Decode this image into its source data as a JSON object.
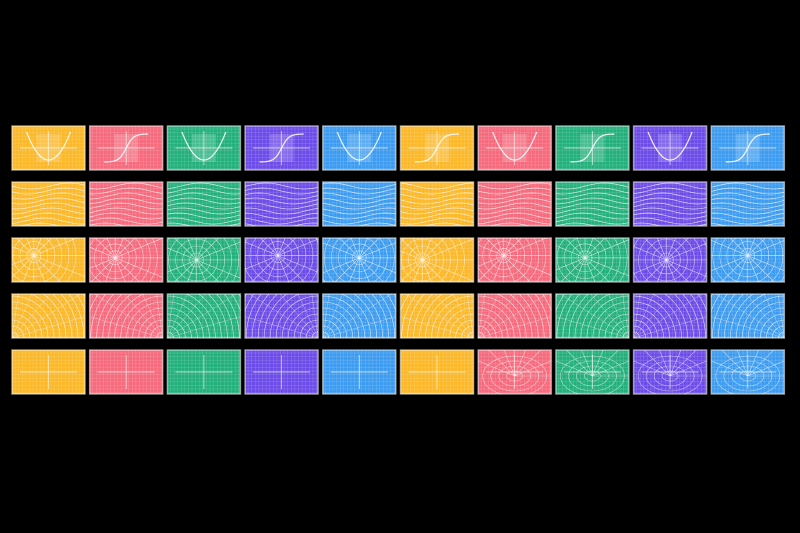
{
  "palette": [
    "#fbb829",
    "#f56a7c",
    "#23b07c",
    "#6c4ce8",
    "#3d9cf0"
  ]
}
